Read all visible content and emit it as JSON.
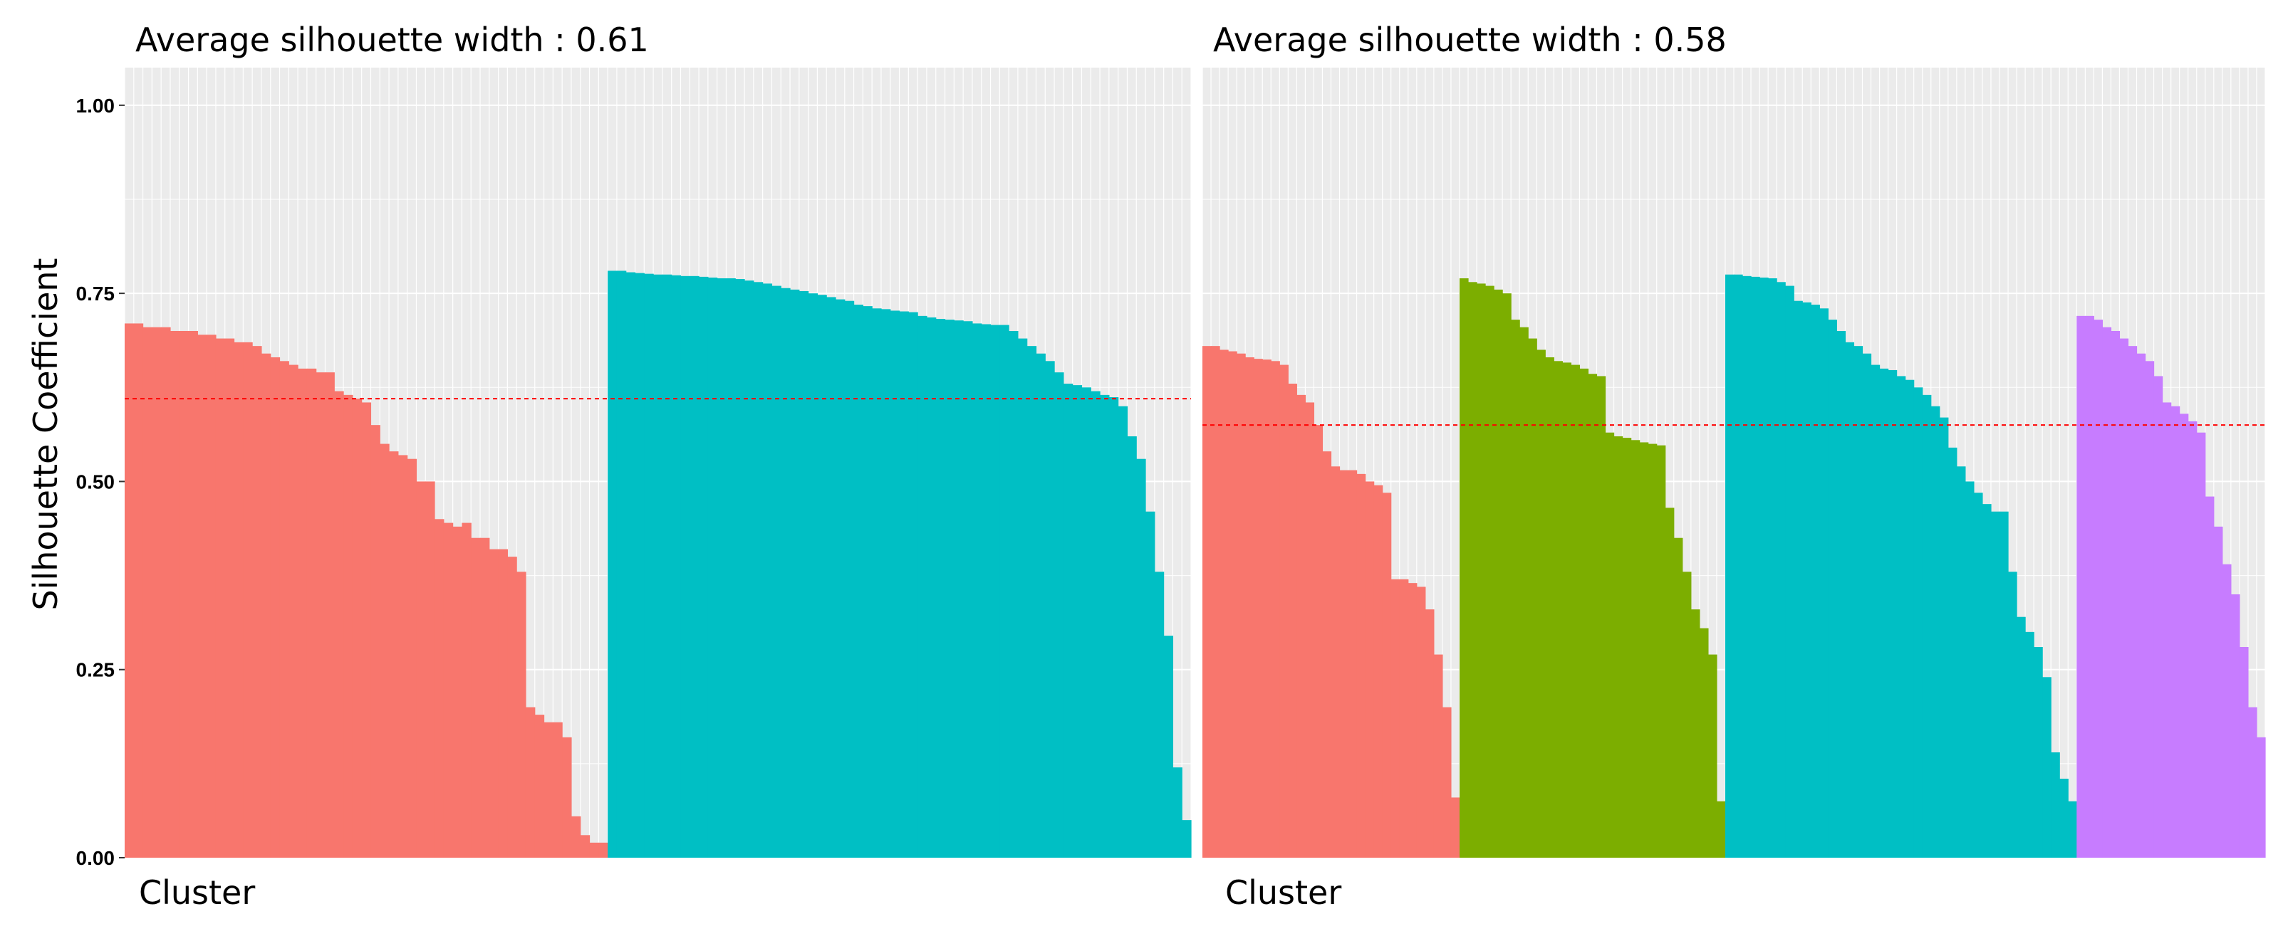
{
  "y_axis_label": "Silhouette Coefficient",
  "chart_data": [
    {
      "type": "bar",
      "title": "Average silhouette width : 0.61",
      "xlabel": "Cluster",
      "ylabel": "Silhouette Coefficient",
      "ylim": [
        0,
        1.05
      ],
      "yticks": [
        "0.00",
        "0.25",
        "0.50",
        "0.75",
        "1.00"
      ],
      "grid": true,
      "average_line": 0.61,
      "series": [
        {
          "color": "#F8766D",
          "values": [
            0.71,
            0.71,
            0.705,
            0.705,
            0.705,
            0.7,
            0.7,
            0.7,
            0.695,
            0.695,
            0.69,
            0.69,
            0.685,
            0.685,
            0.68,
            0.67,
            0.665,
            0.66,
            0.655,
            0.65,
            0.65,
            0.645,
            0.645,
            0.62,
            0.615,
            0.61,
            0.605,
            0.575,
            0.55,
            0.54,
            0.535,
            0.53,
            0.5,
            0.5,
            0.45,
            0.445,
            0.44,
            0.445,
            0.425,
            0.425,
            0.41,
            0.41,
            0.4,
            0.38,
            0.2,
            0.19,
            0.18,
            0.18,
            0.16,
            0.055,
            0.03,
            0.02,
            0.02
          ]
        },
        {
          "color": "#00BFC4",
          "values": [
            0.78,
            0.78,
            0.778,
            0.777,
            0.776,
            0.775,
            0.775,
            0.774,
            0.773,
            0.773,
            0.772,
            0.771,
            0.77,
            0.77,
            0.769,
            0.767,
            0.765,
            0.763,
            0.76,
            0.757,
            0.755,
            0.753,
            0.75,
            0.748,
            0.745,
            0.742,
            0.74,
            0.735,
            0.733,
            0.73,
            0.729,
            0.727,
            0.726,
            0.725,
            0.72,
            0.718,
            0.716,
            0.715,
            0.714,
            0.713,
            0.71,
            0.709,
            0.708,
            0.708,
            0.7,
            0.69,
            0.68,
            0.67,
            0.66,
            0.645,
            0.63,
            0.628,
            0.625,
            0.62,
            0.615,
            0.612,
            0.6,
            0.56,
            0.53,
            0.46,
            0.38,
            0.295,
            0.12,
            0.05
          ]
        }
      ]
    },
    {
      "type": "bar",
      "title": "Average silhouette width : 0.58",
      "xlabel": "Cluster",
      "ylabel": "",
      "ylim": [
        0,
        1.05
      ],
      "yticks": [
        "0.00",
        "0.25",
        "0.50",
        "0.75",
        "1.00"
      ],
      "grid": true,
      "average_line": 0.575,
      "series": [
        {
          "color": "#F8766D",
          "values": [
            0.68,
            0.68,
            0.675,
            0.673,
            0.67,
            0.665,
            0.663,
            0.662,
            0.66,
            0.655,
            0.63,
            0.615,
            0.605,
            0.575,
            0.54,
            0.52,
            0.515,
            0.515,
            0.51,
            0.5,
            0.495,
            0.485,
            0.37,
            0.37,
            0.365,
            0.36,
            0.33,
            0.27,
            0.2,
            0.08
          ]
        },
        {
          "color": "#7CAE00",
          "values": [
            0.77,
            0.765,
            0.763,
            0.76,
            0.755,
            0.75,
            0.715,
            0.705,
            0.69,
            0.675,
            0.665,
            0.66,
            0.658,
            0.655,
            0.65,
            0.643,
            0.64,
            0.565,
            0.56,
            0.558,
            0.555,
            0.552,
            0.55,
            0.548,
            0.465,
            0.425,
            0.38,
            0.33,
            0.305,
            0.27,
            0.075
          ]
        },
        {
          "color": "#00BFC4",
          "values": [
            0.775,
            0.775,
            0.773,
            0.772,
            0.771,
            0.77,
            0.765,
            0.76,
            0.74,
            0.738,
            0.735,
            0.73,
            0.715,
            0.7,
            0.685,
            0.68,
            0.67,
            0.655,
            0.65,
            0.648,
            0.64,
            0.635,
            0.625,
            0.615,
            0.6,
            0.585,
            0.545,
            0.52,
            0.5,
            0.485,
            0.47,
            0.46,
            0.46,
            0.38,
            0.32,
            0.3,
            0.28,
            0.24,
            0.14,
            0.105,
            0.075
          ]
        },
        {
          "color": "#C77CFF",
          "values": [
            0.72,
            0.72,
            0.715,
            0.705,
            0.7,
            0.69,
            0.68,
            0.67,
            0.66,
            0.64,
            0.605,
            0.6,
            0.59,
            0.58,
            0.565,
            0.48,
            0.44,
            0.39,
            0.35,
            0.28,
            0.2,
            0.16
          ]
        }
      ]
    }
  ]
}
